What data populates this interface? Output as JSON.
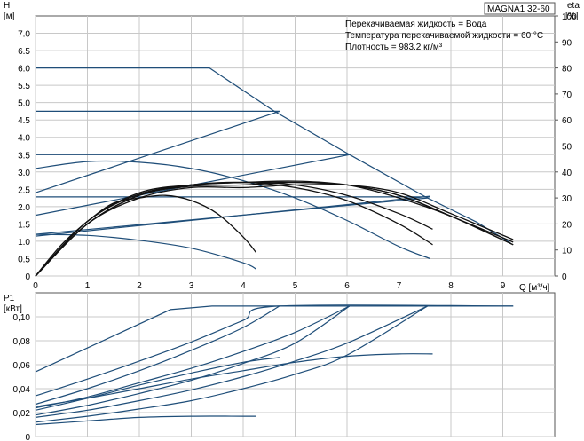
{
  "chart_data": [
    {
      "type": "line",
      "title": "MAGNA1 32-60",
      "info_lines": [
        "Перекачиваемая жидкость = Вода",
        "Температура перекачиваемой жидкости = 60 °C",
        "Плотность = 983.2 кг/м³"
      ],
      "ylabel_symbol": "H",
      "ylabel_unit": "[м]",
      "y2label_symbol": "eta",
      "y2label_unit": "[%]",
      "xlabel": "Q [м³/ч]",
      "xlim": [
        0,
        10
      ],
      "ylim": [
        0,
        7.5
      ],
      "y2lim": [
        0,
        100
      ],
      "x_ticks": [
        "0",
        "1",
        "2",
        "3",
        "4",
        "5",
        "6",
        "7",
        "8",
        "9"
      ],
      "y_ticks": [
        "0",
        "0.5",
        "1.0",
        "1.5",
        "2.0",
        "2.5",
        "3.0",
        "3.5",
        "4.0",
        "4.5",
        "5.0",
        "5.5",
        "6.0",
        "6.5",
        "7.0"
      ],
      "y2_ticks": [
        "0",
        "10",
        "20",
        "30",
        "40",
        "50",
        "60",
        "70",
        "80",
        "90",
        "100"
      ],
      "grid": true,
      "series": [
        {
          "kind": "max-curve",
          "x": [
            0,
            3.35,
            4.6,
            6.05,
            7.55,
            8.5,
            9.15
          ],
          "y": [
            6.0,
            6.0,
            4.75,
            3.5,
            2.25,
            1.55,
            0.95
          ]
        },
        {
          "kind": "constant-curve",
          "x": [
            0,
            4.7
          ],
          "y": [
            4.75,
            4.75
          ]
        },
        {
          "kind": "constant-curve",
          "x": [
            0,
            6.05
          ],
          "y": [
            3.5,
            3.5
          ]
        },
        {
          "kind": "constant-curve",
          "x": [
            0,
            7.6
          ],
          "y": [
            2.28,
            2.28
          ]
        },
        {
          "kind": "proportional-curve",
          "x": [
            0,
            4.7
          ],
          "y": [
            2.4,
            4.75
          ]
        },
        {
          "kind": "proportional-curve",
          "x": [
            0,
            6.05
          ],
          "y": [
            1.75,
            3.5
          ]
        },
        {
          "kind": "proportional-curve",
          "x": [
            0,
            7.55
          ],
          "y": [
            1.2,
            2.25
          ]
        },
        {
          "kind": "proportional-curve",
          "x": [
            0,
            7.6
          ],
          "y": [
            1.15,
            2.3
          ]
        },
        {
          "kind": "autoadapt-curve",
          "x": [
            0,
            1,
            2,
            3,
            4,
            5,
            6,
            7,
            7.6
          ],
          "y": [
            3.1,
            3.3,
            3.28,
            3.1,
            2.75,
            2.25,
            1.6,
            0.85,
            0.5
          ]
        },
        {
          "kind": "min-curve",
          "x": [
            0,
            1,
            2,
            3,
            4,
            4.25
          ],
          "y": [
            1.2,
            1.17,
            1.03,
            0.8,
            0.38,
            0.2
          ]
        },
        {
          "kind": "efficiency",
          "x": [
            0,
            0.5,
            1,
            1.5,
            2,
            2.5,
            3,
            3.5,
            4,
            4.25
          ],
          "y": [
            0,
            12,
            21,
            28,
            30,
            31,
            29,
            24,
            15,
            9
          ]
        },
        {
          "kind": "efficiency",
          "x": [
            0,
            1,
            2,
            3,
            4,
            5,
            6,
            7,
            7.65
          ],
          "y": [
            0,
            20,
            31,
            35,
            36,
            34,
            29,
            20,
            12
          ]
        },
        {
          "kind": "efficiency",
          "x": [
            0,
            1,
            2,
            3,
            4,
            5,
            6,
            7,
            7.65
          ],
          "y": [
            0,
            20,
            31,
            35,
            36,
            35,
            31,
            24,
            18
          ]
        },
        {
          "kind": "efficiency",
          "x": [
            0,
            1,
            2,
            3,
            4,
            5,
            6,
            7,
            8,
            9.2
          ],
          "y": [
            0,
            20,
            30,
            34,
            34,
            35,
            35,
            32,
            24,
            14
          ]
        },
        {
          "kind": "efficiency",
          "x": [
            0,
            1,
            2,
            3,
            4,
            5,
            6,
            7,
            8,
            9.2
          ],
          "y": [
            0,
            20,
            31,
            34.5,
            35,
            36,
            35,
            31,
            23,
            13
          ]
        },
        {
          "kind": "efficiency",
          "x": [
            0,
            1,
            2,
            3,
            4,
            5,
            6,
            7,
            8,
            9.2
          ],
          "y": [
            0,
            21,
            31.5,
            35,
            36,
            36,
            35,
            31,
            23,
            12
          ]
        },
        {
          "kind": "efficiency",
          "x": [
            0,
            1,
            2,
            3,
            4,
            5,
            6,
            7,
            8,
            9.2
          ],
          "y": [
            0,
            21,
            32,
            35,
            36,
            36.5,
            35,
            30,
            23,
            12
          ]
        }
      ]
    },
    {
      "type": "line",
      "ylabel_symbol": "P1",
      "ylabel_unit": "[кВт]",
      "xlim": [
        0,
        10
      ],
      "ylim": [
        0,
        0.12
      ],
      "y_ticks": [
        "0",
        "0,02",
        "0,04",
        "0,06",
        "0,08",
        "0,10"
      ],
      "grid": true,
      "series": [
        {
          "kind": "max-power",
          "x": [
            0,
            2.6,
            3.4,
            9.2
          ],
          "y": [
            0.054,
            0.106,
            0.109,
            0.109
          ]
        },
        {
          "kind": "power",
          "x": [
            0,
            1,
            2,
            3,
            4,
            4.7,
            9.2
          ],
          "y": [
            0.034,
            0.048,
            0.063,
            0.079,
            0.097,
            0.109,
            0.109
          ]
        },
        {
          "kind": "power",
          "x": [
            0,
            1,
            2,
            3,
            4,
            4.7
          ],
          "y": [
            0.027,
            0.04,
            0.055,
            0.072,
            0.091,
            0.109
          ]
        },
        {
          "kind": "power",
          "x": [
            0,
            1,
            2,
            3,
            4,
            5,
            6.05
          ],
          "y": [
            0.024,
            0.033,
            0.045,
            0.057,
            0.071,
            0.087,
            0.109
          ]
        },
        {
          "kind": "power",
          "x": [
            0,
            1,
            2,
            3,
            4,
            5,
            6.05
          ],
          "y": [
            0.018,
            0.026,
            0.036,
            0.047,
            0.061,
            0.078,
            0.109
          ]
        },
        {
          "kind": "power",
          "x": [
            0,
            1,
            2,
            3,
            4,
            5,
            6,
            7.55
          ],
          "y": [
            0.016,
            0.022,
            0.03,
            0.039,
            0.05,
            0.063,
            0.078,
            0.109
          ]
        },
        {
          "kind": "power",
          "x": [
            0,
            1,
            2,
            3,
            4,
            5,
            6,
            7.55
          ],
          "y": [
            0.012,
            0.017,
            0.023,
            0.03,
            0.04,
            0.052,
            0.068,
            0.109
          ]
        },
        {
          "kind": "power",
          "x": [
            0,
            1,
            2,
            3,
            4,
            5,
            6,
            7,
            7.65
          ],
          "y": [
            0.025,
            0.032,
            0.04,
            0.048,
            0.055,
            0.062,
            0.067,
            0.069,
            0.069
          ]
        },
        {
          "kind": "power",
          "x": [
            0,
            1,
            2,
            3,
            4,
            4.7
          ],
          "y": [
            0.022,
            0.032,
            0.043,
            0.053,
            0.062,
            0.066
          ]
        },
        {
          "kind": "power",
          "x": [
            0,
            1,
            2,
            3,
            4,
            4.25
          ],
          "y": [
            0.01,
            0.013,
            0.016,
            0.017,
            0.017,
            0.017
          ]
        }
      ]
    }
  ]
}
